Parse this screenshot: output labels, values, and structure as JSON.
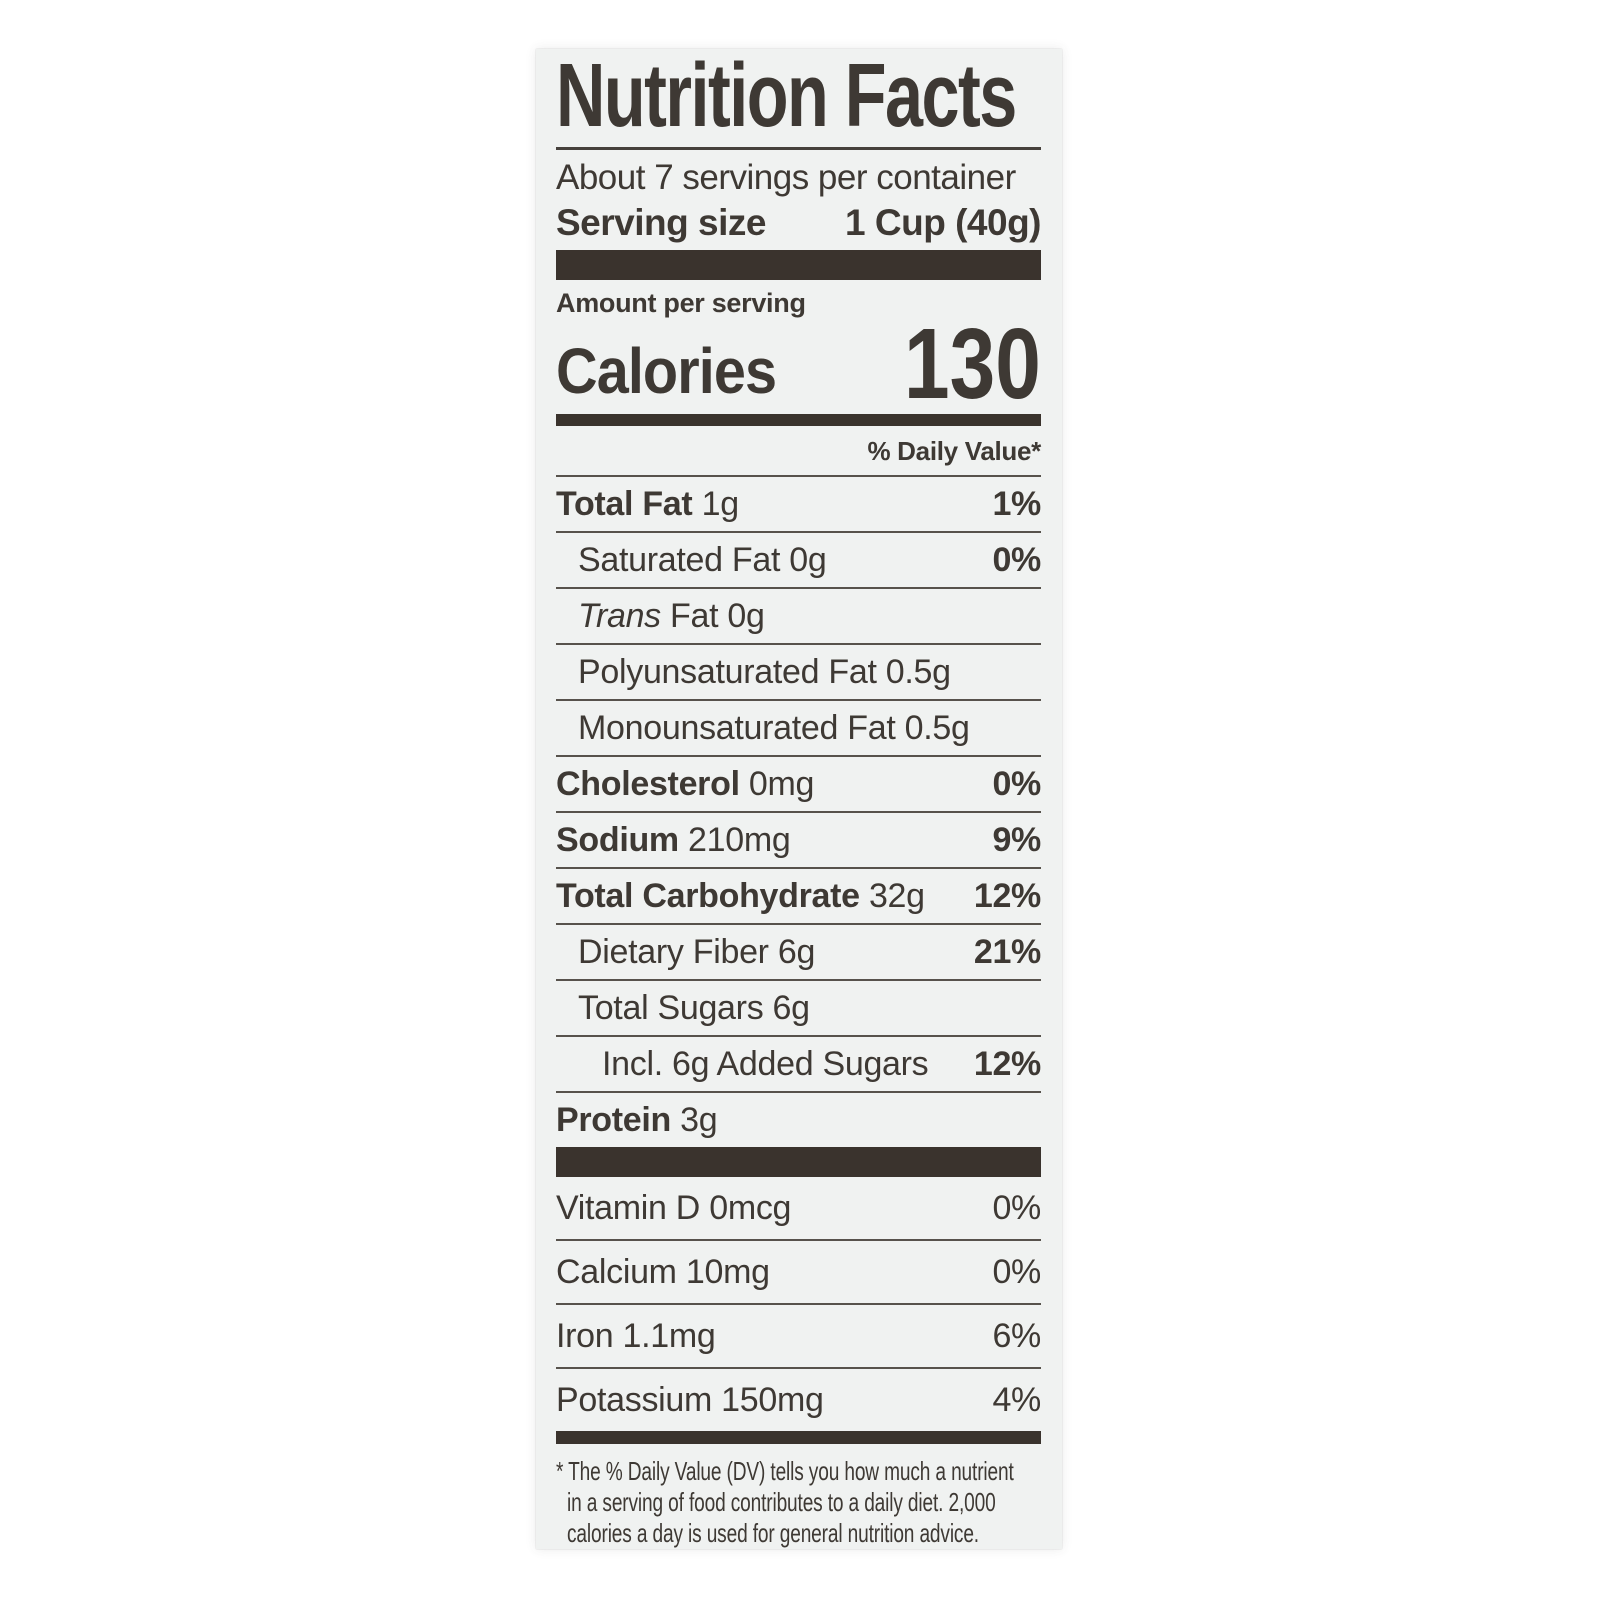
{
  "label": {
    "title": "Nutrition Facts",
    "servings_per_container": "About 7 servings per container",
    "serving_size_label": "Serving size",
    "serving_size_value": "1 Cup (40g)",
    "amount_per_serving": "Amount per serving",
    "calories_label": "Calories",
    "calories_value": "130",
    "daily_value_header": "% Daily Value*",
    "colors": {
      "card_background": "#f0f2f1",
      "text": "#3e3934",
      "bar": "#3a332d",
      "hairline": "#57524c"
    },
    "nutrients": [
      {
        "indent": 0,
        "parts": [
          {
            "t": "Total Fat",
            "s": "b"
          },
          {
            "t": " 1g",
            "s": "r"
          }
        ],
        "dv": "1%",
        "dv_bold": true
      },
      {
        "indent": 1,
        "parts": [
          {
            "t": "Saturated Fat 0g",
            "s": "r"
          }
        ],
        "dv": "0%",
        "dv_bold": true
      },
      {
        "indent": 1,
        "parts": [
          {
            "t": "Trans",
            "s": "i"
          },
          {
            "t": " Fat 0g",
            "s": "r"
          }
        ],
        "dv": "",
        "dv_bold": false
      },
      {
        "indent": 1,
        "parts": [
          {
            "t": "Polyunsaturated Fat 0.5g",
            "s": "r"
          }
        ],
        "dv": "",
        "dv_bold": false
      },
      {
        "indent": 1,
        "parts": [
          {
            "t": "Monounsaturated Fat 0.5g",
            "s": "r"
          }
        ],
        "dv": "",
        "dv_bold": false
      },
      {
        "indent": 0,
        "parts": [
          {
            "t": "Cholesterol",
            "s": "b"
          },
          {
            "t": " 0mg",
            "s": "r"
          }
        ],
        "dv": "0%",
        "dv_bold": true
      },
      {
        "indent": 0,
        "parts": [
          {
            "t": "Sodium",
            "s": "b"
          },
          {
            "t": " 210mg",
            "s": "r"
          }
        ],
        "dv": "9%",
        "dv_bold": true
      },
      {
        "indent": 0,
        "parts": [
          {
            "t": "Total Carbohydrate",
            "s": "b"
          },
          {
            "t": " 32g",
            "s": "r"
          }
        ],
        "dv": "12%",
        "dv_bold": true
      },
      {
        "indent": 1,
        "parts": [
          {
            "t": "Dietary Fiber 6g",
            "s": "r"
          }
        ],
        "dv": "21%",
        "dv_bold": true
      },
      {
        "indent": 1,
        "parts": [
          {
            "t": "Total Sugars 6g",
            "s": "r"
          }
        ],
        "dv": "",
        "dv_bold": false
      },
      {
        "indent": 2,
        "inset_sep": true,
        "parts": [
          {
            "t": "Incl. 6g Added Sugars",
            "s": "r"
          }
        ],
        "dv": "12%",
        "dv_bold": true
      },
      {
        "indent": 0,
        "parts": [
          {
            "t": "Protein",
            "s": "b"
          },
          {
            "t": " 3g",
            "s": "r"
          }
        ],
        "dv": "",
        "dv_bold": false
      }
    ],
    "vitamins": [
      {
        "indent": 0,
        "parts": [
          {
            "t": "Vitamin D 0mcg",
            "s": "r"
          }
        ],
        "dv": "0%",
        "dv_bold": false
      },
      {
        "indent": 0,
        "parts": [
          {
            "t": "Calcium 10mg",
            "s": "r"
          }
        ],
        "dv": "0%",
        "dv_bold": false
      },
      {
        "indent": 0,
        "parts": [
          {
            "t": "Iron 1.1mg",
            "s": "r"
          }
        ],
        "dv": "6%",
        "dv_bold": false
      },
      {
        "indent": 0,
        "parts": [
          {
            "t": "Potassium 150mg",
            "s": "r"
          }
        ],
        "dv": "4%",
        "dv_bold": false
      }
    ],
    "footnote_lines": [
      "* The % Daily Value (DV) tells you how much a nutrient",
      "in a serving of food contributes to a daily diet. 2,000",
      "calories a day is used for general nutrition advice."
    ]
  }
}
